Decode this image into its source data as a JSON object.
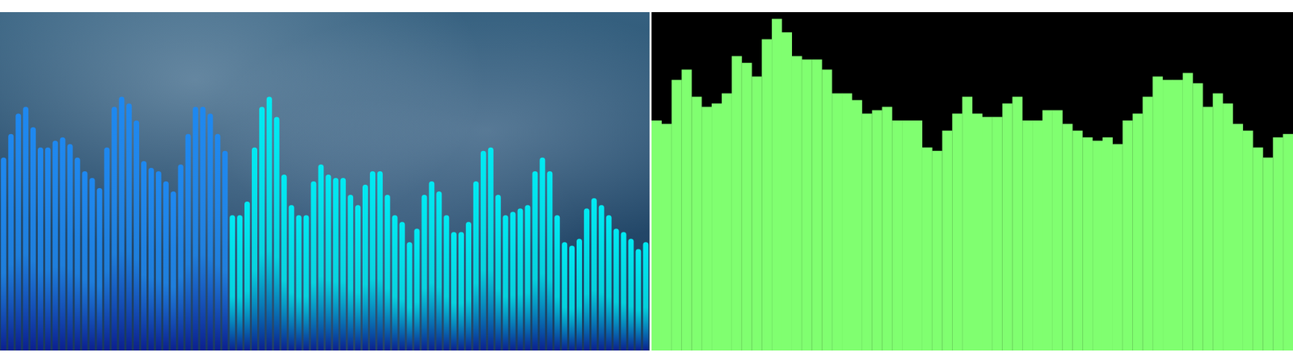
{
  "chart_data": [
    {
      "type": "bar",
      "values": [
        57,
        64,
        70,
        72,
        66,
        60,
        60,
        62,
        63,
        61,
        57,
        53,
        51,
        48,
        60,
        72,
        75,
        73,
        68,
        56,
        54,
        53,
        50,
        47,
        55,
        64,
        72,
        72,
        70,
        64,
        59,
        40,
        40,
        44,
        60,
        72,
        75,
        69,
        52,
        43,
        40,
        40,
        50,
        55,
        52,
        51,
        51,
        46,
        43,
        49,
        53,
        53,
        46,
        40,
        38,
        32,
        36,
        46,
        50,
        47,
        40,
        35,
        35,
        38,
        50,
        59,
        60,
        46,
        40,
        41,
        42,
        43,
        53,
        57,
        53,
        40,
        32,
        31,
        33,
        42,
        45,
        43,
        40,
        36,
        35,
        33,
        30,
        32
      ],
      "colors": [
        "#1e88f0",
        "#1e88f0",
        "#1e88f0",
        "#1e88f0",
        "#1e88f0",
        "#1e88f0",
        "#1e88f0",
        "#1e88f0",
        "#1e88f0",
        "#1e88f0",
        "#1e88f0",
        "#1e88f0",
        "#1e88f0",
        "#1e88f0",
        "#1e88f0",
        "#1e88f0",
        "#1e88f0",
        "#1e88f0",
        "#1e88f0",
        "#1e88f0",
        "#1e88f0",
        "#1e88f0",
        "#1e88f0",
        "#1e88f0",
        "#1e88f0",
        "#1e88f0",
        "#1e88f0",
        "#1e88f0",
        "#1e88f0",
        "#1e88f0",
        "#1e88f0",
        "#00eaf2",
        "#00eaf2",
        "#00eaf2",
        "#00eaf2",
        "#00eaf2",
        "#00eaf2",
        "#00eaf2",
        "#00eaf2",
        "#00eaf2",
        "#00eaf2",
        "#00eaf2",
        "#00eaf2",
        "#00eaf2",
        "#00eaf2",
        "#00eaf2",
        "#00eaf2",
        "#00eaf2",
        "#00eaf2",
        "#00eaf2",
        "#00eaf2",
        "#00eaf2",
        "#00eaf2",
        "#00eaf2",
        "#00eaf2",
        "#00eaf2",
        "#00eaf2",
        "#00eaf2",
        "#00eaf2",
        "#00eaf2",
        "#00eaf2",
        "#00eaf2",
        "#00eaf2",
        "#00eaf2",
        "#00eaf2",
        "#00eaf2",
        "#00eaf2",
        "#00eaf2",
        "#00eaf2",
        "#00eaf2",
        "#00eaf2",
        "#00eaf2",
        "#00eaf2",
        "#00eaf2",
        "#00eaf2",
        "#00eaf2",
        "#00eaf2",
        "#00eaf2",
        "#00eaf2",
        "#00eaf2",
        "#00eaf2",
        "#00eaf2",
        "#00eaf2",
        "#00eaf2",
        "#00eaf2",
        "#00eaf2",
        "#00eaf2",
        "#00eaf2"
      ],
      "ylim": [
        0,
        100
      ],
      "tick_labels": false
    },
    {
      "type": "bar",
      "values": [
        68,
        67,
        80,
        83,
        75,
        72,
        73,
        76,
        87,
        85,
        81,
        92,
        98,
        94,
        87,
        86,
        86,
        83,
        76,
        76,
        74,
        70,
        71,
        72,
        68,
        68,
        68,
        60,
        59,
        65,
        70,
        75,
        70,
        69,
        69,
        73,
        75,
        68,
        68,
        71,
        71,
        67,
        65,
        63,
        62,
        63,
        61,
        68,
        70,
        75,
        81,
        80,
        80,
        82,
        79,
        72,
        76,
        73,
        67,
        65,
        60,
        57,
        63,
        64
      ],
      "color": "#80ff70",
      "ylim": [
        0,
        100
      ],
      "tick_labels": false
    }
  ]
}
